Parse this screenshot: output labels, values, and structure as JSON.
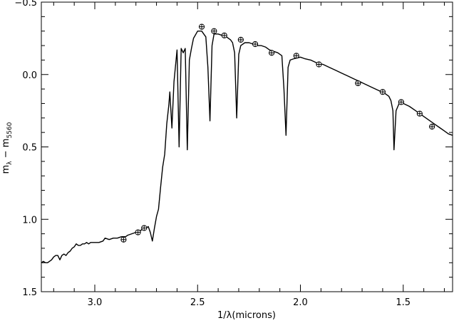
{
  "chart_data": {
    "type": "line",
    "title": "",
    "xlabel": "1/λ(microns)",
    "ylabel": {
      "main": "m",
      "main_sub": "λ",
      "sep": " − m",
      "ref_sub": "5560"
    },
    "xlim": [
      3.26,
      1.26
    ],
    "ylim": [
      1.5,
      -0.5
    ],
    "x_reversed": true,
    "y_reversed": true,
    "grid": false,
    "legend": "none",
    "x_ticks": [
      {
        "value": 3.0,
        "label": "3.0"
      },
      {
        "value": 2.5,
        "label": "2.5"
      },
      {
        "value": 2.0,
        "label": "2.0"
      },
      {
        "value": 1.5,
        "label": "1.5"
      }
    ],
    "y_ticks": [
      {
        "value": -0.5,
        "label": "−0.5"
      },
      {
        "value": 0.0,
        "label": "0.0"
      },
      {
        "value": 0.5,
        "label": "0.5"
      },
      {
        "value": 1.0,
        "label": "1.0"
      },
      {
        "value": 1.5,
        "label": "1.5"
      }
    ],
    "series": [
      {
        "kind": "model-spectrum",
        "color": "#000000",
        "points": [
          [
            3.26,
            1.3
          ],
          [
            3.25,
            1.29
          ],
          [
            3.24,
            1.3
          ],
          [
            3.23,
            1.3
          ],
          [
            3.22,
            1.29
          ],
          [
            3.21,
            1.28
          ],
          [
            3.2,
            1.26
          ],
          [
            3.19,
            1.25
          ],
          [
            3.18,
            1.25
          ],
          [
            3.17,
            1.28
          ],
          [
            3.16,
            1.25
          ],
          [
            3.15,
            1.24
          ],
          [
            3.14,
            1.25
          ],
          [
            3.13,
            1.23
          ],
          [
            3.12,
            1.22
          ],
          [
            3.11,
            1.2
          ],
          [
            3.1,
            1.19
          ],
          [
            3.09,
            1.17
          ],
          [
            3.08,
            1.18
          ],
          [
            3.07,
            1.18
          ],
          [
            3.06,
            1.17
          ],
          [
            3.05,
            1.17
          ],
          [
            3.04,
            1.16
          ],
          [
            3.03,
            1.17
          ],
          [
            3.02,
            1.16
          ],
          [
            3.0,
            1.16
          ],
          [
            2.98,
            1.16
          ],
          [
            2.96,
            1.15
          ],
          [
            2.95,
            1.13
          ],
          [
            2.93,
            1.14
          ],
          [
            2.91,
            1.13
          ],
          [
            2.89,
            1.13
          ],
          [
            2.87,
            1.12
          ],
          [
            2.85,
            1.12
          ],
          [
            2.84,
            1.11
          ],
          [
            2.82,
            1.1
          ],
          [
            2.8,
            1.09
          ],
          [
            2.78,
            1.08
          ],
          [
            2.76,
            1.06
          ],
          [
            2.75,
            1.06
          ],
          [
            2.74,
            1.05
          ],
          [
            2.73,
            1.09
          ],
          [
            2.72,
            1.15
          ],
          [
            2.71,
            1.06
          ],
          [
            2.7,
            0.98
          ],
          [
            2.69,
            0.93
          ],
          [
            2.68,
            0.78
          ],
          [
            2.67,
            0.64
          ],
          [
            2.66,
            0.55
          ],
          [
            2.65,
            0.34
          ],
          [
            2.64,
            0.21
          ],
          [
            2.635,
            0.12
          ],
          [
            2.625,
            0.37
          ],
          [
            2.615,
            0.05
          ],
          [
            2.6,
            -0.17
          ],
          [
            2.59,
            0.5
          ],
          [
            2.58,
            -0.18
          ],
          [
            2.57,
            -0.15
          ],
          [
            2.56,
            -0.18
          ],
          [
            2.55,
            0.52
          ],
          [
            2.54,
            -0.1
          ],
          [
            2.53,
            -0.18
          ],
          [
            2.52,
            -0.25
          ],
          [
            2.5,
            -0.3
          ],
          [
            2.48,
            -0.3
          ],
          [
            2.47,
            -0.28
          ],
          [
            2.46,
            -0.26
          ],
          [
            2.45,
            -0.05
          ],
          [
            2.44,
            0.32
          ],
          [
            2.43,
            -0.2
          ],
          [
            2.42,
            -0.28
          ],
          [
            2.4,
            -0.28
          ],
          [
            2.38,
            -0.27
          ],
          [
            2.36,
            -0.26
          ],
          [
            2.34,
            -0.24
          ],
          [
            2.33,
            -0.22
          ],
          [
            2.32,
            -0.15
          ],
          [
            2.31,
            0.3
          ],
          [
            2.3,
            -0.14
          ],
          [
            2.29,
            -0.2
          ],
          [
            2.27,
            -0.22
          ],
          [
            2.25,
            -0.22
          ],
          [
            2.23,
            -0.21
          ],
          [
            2.21,
            -0.2
          ],
          [
            2.19,
            -0.2
          ],
          [
            2.17,
            -0.19
          ],
          [
            2.15,
            -0.17
          ],
          [
            2.13,
            -0.16
          ],
          [
            2.11,
            -0.15
          ],
          [
            2.1,
            -0.14
          ],
          [
            2.09,
            -0.13
          ],
          [
            2.08,
            0.1
          ],
          [
            2.07,
            0.42
          ],
          [
            2.06,
            -0.05
          ],
          [
            2.05,
            -0.1
          ],
          [
            2.03,
            -0.11
          ],
          [
            2.0,
            -0.12
          ],
          [
            1.98,
            -0.11
          ],
          [
            1.95,
            -0.1
          ],
          [
            1.92,
            -0.08
          ],
          [
            1.89,
            -0.07
          ],
          [
            1.86,
            -0.05
          ],
          [
            1.83,
            -0.03
          ],
          [
            1.8,
            -0.01
          ],
          [
            1.77,
            0.01
          ],
          [
            1.74,
            0.03
          ],
          [
            1.71,
            0.05
          ],
          [
            1.68,
            0.07
          ],
          [
            1.65,
            0.09
          ],
          [
            1.62,
            0.11
          ],
          [
            1.59,
            0.13
          ],
          [
            1.57,
            0.15
          ],
          [
            1.56,
            0.18
          ],
          [
            1.55,
            0.25
          ],
          [
            1.545,
            0.52
          ],
          [
            1.535,
            0.25
          ],
          [
            1.52,
            0.2
          ],
          [
            1.5,
            0.2
          ],
          [
            1.47,
            0.22
          ],
          [
            1.44,
            0.25
          ],
          [
            1.41,
            0.28
          ],
          [
            1.38,
            0.31
          ],
          [
            1.35,
            0.34
          ],
          [
            1.32,
            0.37
          ],
          [
            1.3,
            0.39
          ],
          [
            1.28,
            0.41
          ],
          [
            1.26,
            0.42
          ]
        ]
      },
      {
        "kind": "photometry",
        "marker": "circle-plus",
        "color": "#000000",
        "points": [
          [
            2.86,
            1.14
          ],
          [
            2.79,
            1.09
          ],
          [
            2.76,
            1.06
          ],
          [
            2.48,
            -0.33
          ],
          [
            2.42,
            -0.3
          ],
          [
            2.37,
            -0.27
          ],
          [
            2.29,
            -0.24
          ],
          [
            2.22,
            -0.21
          ],
          [
            2.14,
            -0.15
          ],
          [
            2.02,
            -0.13
          ],
          [
            1.91,
            -0.07
          ],
          [
            1.72,
            0.06
          ],
          [
            1.6,
            0.12
          ],
          [
            1.51,
            0.19
          ],
          [
            1.42,
            0.27
          ],
          [
            1.36,
            0.36
          ]
        ]
      }
    ]
  }
}
